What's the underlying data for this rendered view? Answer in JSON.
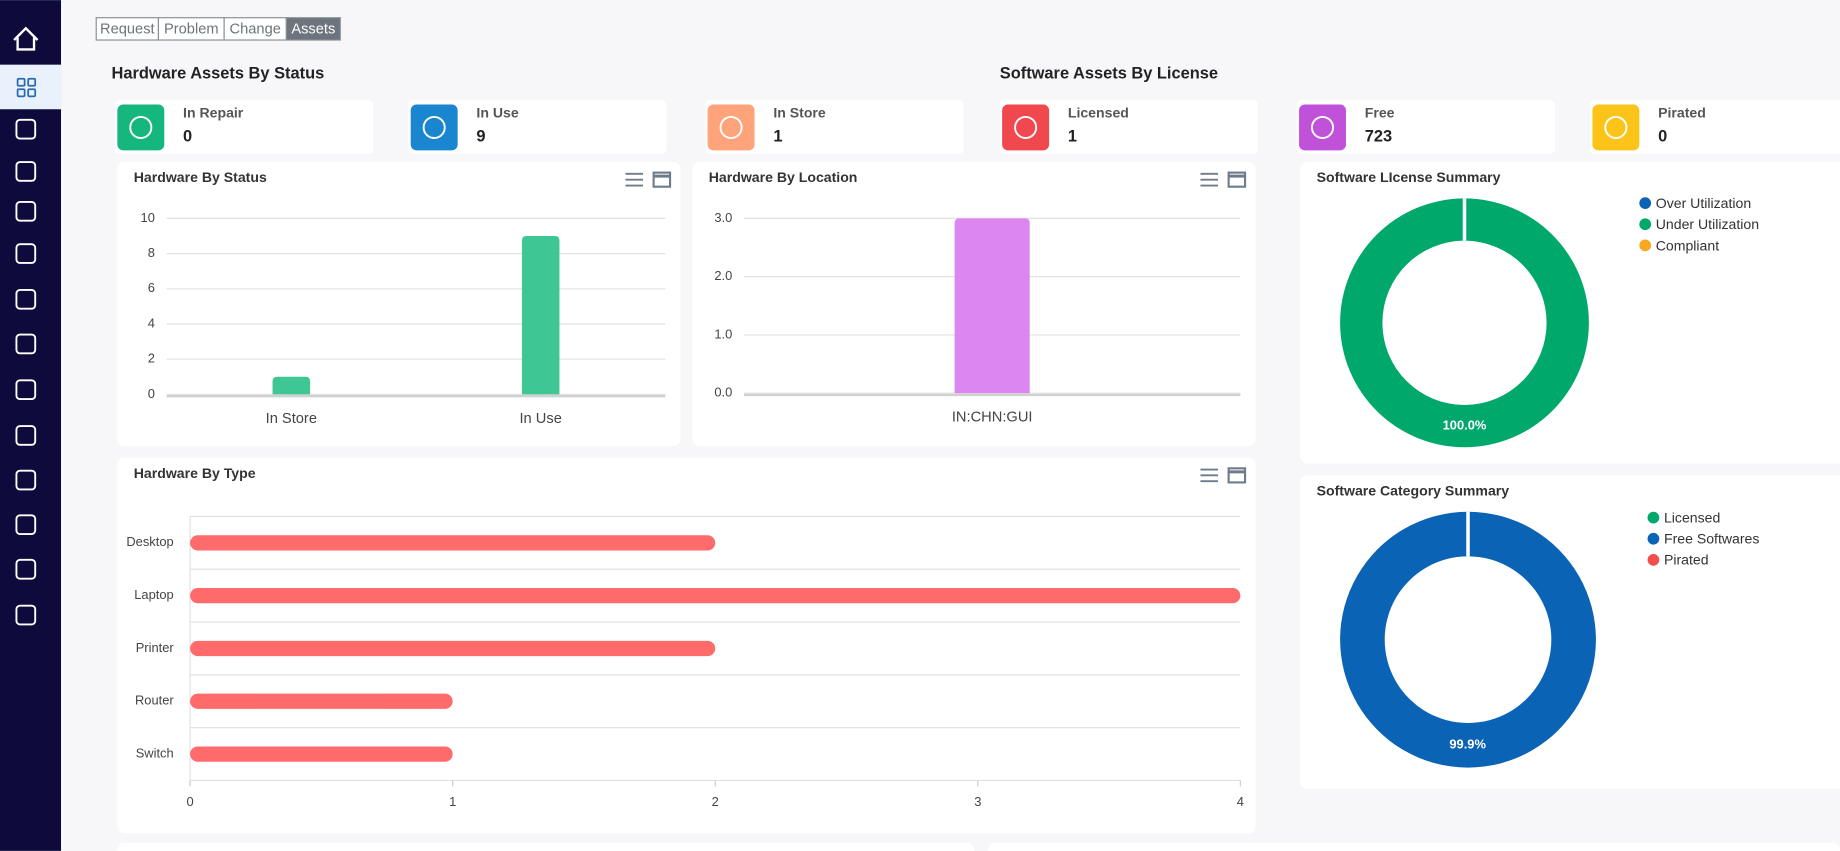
{
  "tabs": [
    "Request",
    "Problem",
    "Change",
    "Assets"
  ],
  "active_tab": 3,
  "sections": [
    "Hardware Assets By Status",
    "Software Assets By License"
  ],
  "stat_cards": [
    {
      "label": "In Repair",
      "value": 0
    },
    {
      "label": "In Use",
      "value": 9
    },
    {
      "label": "In Store",
      "value": 1
    },
    {
      "label": "Licensed",
      "value": 1
    },
    {
      "label": "Free",
      "value": 723
    },
    {
      "label": "Pirated",
      "value": 0
    }
  ],
  "chart_data": [
    {
      "type": "bar",
      "title": "Hardware By Status",
      "categories": [
        "In Store",
        "In Use"
      ],
      "values": [
        1,
        9
      ],
      "color": "#34c38f",
      "ylim": [
        0,
        10
      ],
      "yticks": [
        0,
        2,
        4,
        6,
        8,
        10
      ],
      "grid": true
    },
    {
      "type": "bar",
      "title": "Hardware By Location",
      "categories": [
        "IN:CHN:GUI"
      ],
      "values": [
        3
      ],
      "color": "#d97ff0",
      "ylim": [
        0,
        3
      ],
      "yticks": [
        {
          "value": 0,
          "label": "0.0"
        },
        {
          "value": 1,
          "label": "1.0"
        },
        {
          "value": 2,
          "label": "2.0"
        },
        {
          "value": 3,
          "label": "3.0"
        }
      ],
      "grid": true
    },
    {
      "type": "hbar",
      "title": "Hardware By Type",
      "categories": [
        "Desktop",
        "Laptop",
        "Printer",
        "Router",
        "Switch"
      ],
      "values": [
        2,
        4,
        2,
        1,
        1
      ],
      "color": "#ff6b6b",
      "xlim": [
        0,
        4
      ],
      "xticks": [
        0,
        1,
        2,
        3,
        4
      ],
      "grid": true
    },
    {
      "type": "donut",
      "title": "Software LIcense Summary",
      "categories": [
        "Over Utilization",
        "Under Utilization",
        "Compliant"
      ],
      "values": [
        0,
        100,
        0
      ],
      "value_labels": [
        null,
        "100.0%",
        null
      ],
      "colors": [
        "#0b63b6",
        "#00a86b",
        "#f6a821"
      ]
    },
    {
      "type": "donut",
      "title": "Software Category Summary",
      "categories": [
        "Licensed",
        "Free Softwares",
        "Pirated"
      ],
      "values": [
        0.1,
        99.9,
        0
      ],
      "value_labels": [
        null,
        "99.9%",
        null
      ],
      "colors": [
        "#00a86b",
        "#0b63b6",
        "#f24e4e"
      ]
    }
  ]
}
